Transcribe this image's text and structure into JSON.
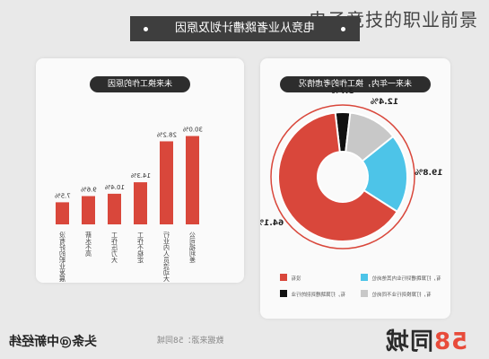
{
  "overlay_title": "电子竞技的职业前景",
  "banner_title": "电竞从业者跳槽计划及原因",
  "footer": {
    "source": "数据来源：58同城",
    "brand_text": "同城",
    "brand_num": "58",
    "watermark": "头条@中新经纬"
  },
  "colors": {
    "red": "#d9473b",
    "blue": "#4dc4e8",
    "gray": "#c8c8c8",
    "black": "#111111",
    "pill": "#2d2d2d"
  },
  "chart_data": [
    {
      "type": "bar",
      "title": "未来换工作的原因",
      "categories": [
        "没有好的职业发展",
        "薪水不高",
        "工作压力大",
        "工作不稳定",
        "行业内人员流动大",
        "公司福利差"
      ],
      "values": [
        7.5,
        9.6,
        10.4,
        14.3,
        28.2,
        30.0
      ],
      "value_labels": [
        "7.5%",
        "9.6%",
        "10.4%",
        "14.3%",
        "28.2%",
        "30.0%"
      ],
      "ylim": [
        0,
        32
      ],
      "grid": false,
      "legend": "none",
      "color": "#d9473b"
    },
    {
      "type": "pie",
      "title": "未来一年内，换工作的考虑情况",
      "slices": [
        {
          "label": "没有",
          "value": 64.1,
          "value_label": "64.1%",
          "color": "#d9473b"
        },
        {
          "label": "有，打算跳槽到行业内其他岗位",
          "value": 19.8,
          "value_label": "19.8%",
          "color": "#4dc4e8"
        },
        {
          "label": "有，打算换到行业不同岗位",
          "value": 12.4,
          "value_label": "12.4%",
          "color": "#c8c8c8"
        },
        {
          "label": "有，打算跳槽到别的行业",
          "value": 3.7,
          "value_label": "3.7%",
          "color": "#111111"
        }
      ],
      "donut": true,
      "legend": "bottom"
    }
  ]
}
